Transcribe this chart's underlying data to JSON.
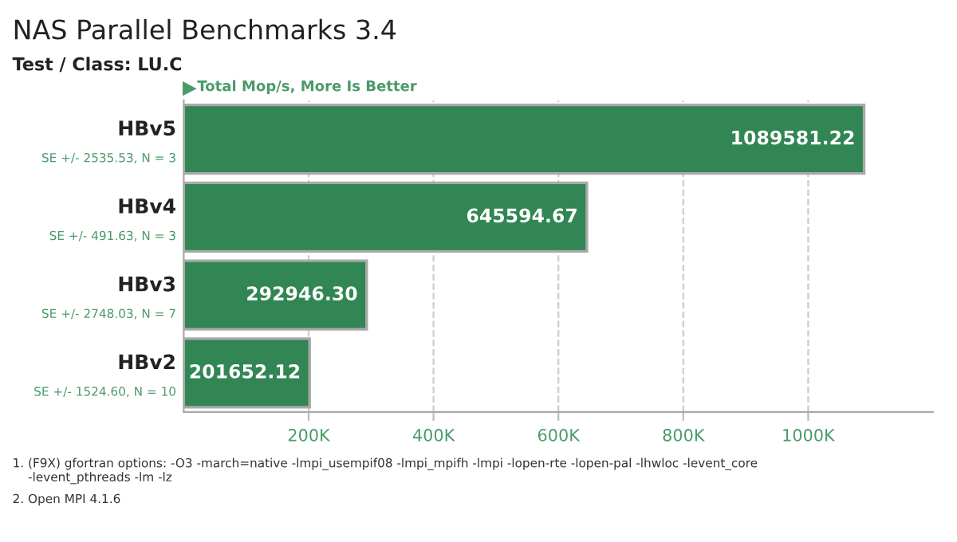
{
  "chart_data": {
    "type": "bar",
    "orientation": "horizontal",
    "title": "NAS Parallel Benchmarks 3.4",
    "subtitle": "Test / Class: LU.C",
    "xlabel": "Total Mop/s, More Is Better",
    "categories": [
      "HBv5",
      "HBv4",
      "HBv3",
      "HBv2"
    ],
    "values": [
      1089581.22,
      645594.67,
      292946.3,
      201652.12
    ],
    "value_labels": [
      "1089581.22",
      "645594.67",
      "292946.30",
      "201652.12"
    ],
    "color": "#318653",
    "xlim": [
      0,
      1200000
    ],
    "xticks": [
      {
        "value": 200000,
        "label": "200K"
      },
      {
        "value": 400000,
        "label": "400K"
      },
      {
        "value": 600000,
        "label": "600K"
      },
      {
        "value": 800000,
        "label": "800K"
      },
      {
        "value": 1000000,
        "label": "1000K"
      }
    ],
    "grid": "x",
    "annotations": [
      "SE +/- 2535.53, N = 3",
      "SE +/- 491.63, N = 3",
      "SE +/- 2748.03, N = 7",
      "SE +/- 1524.60, N = 10",
      "1. (F9X) gfortran options: -O3 -march=native -lmpi_usempif08 -lmpi_mpifh -lmpi -lopen-rte -lopen-pal -lhwloc -levent_core\n    -levent_pthreads -lm -lz",
      "2. Open MPI 4.1.6"
    ]
  }
}
